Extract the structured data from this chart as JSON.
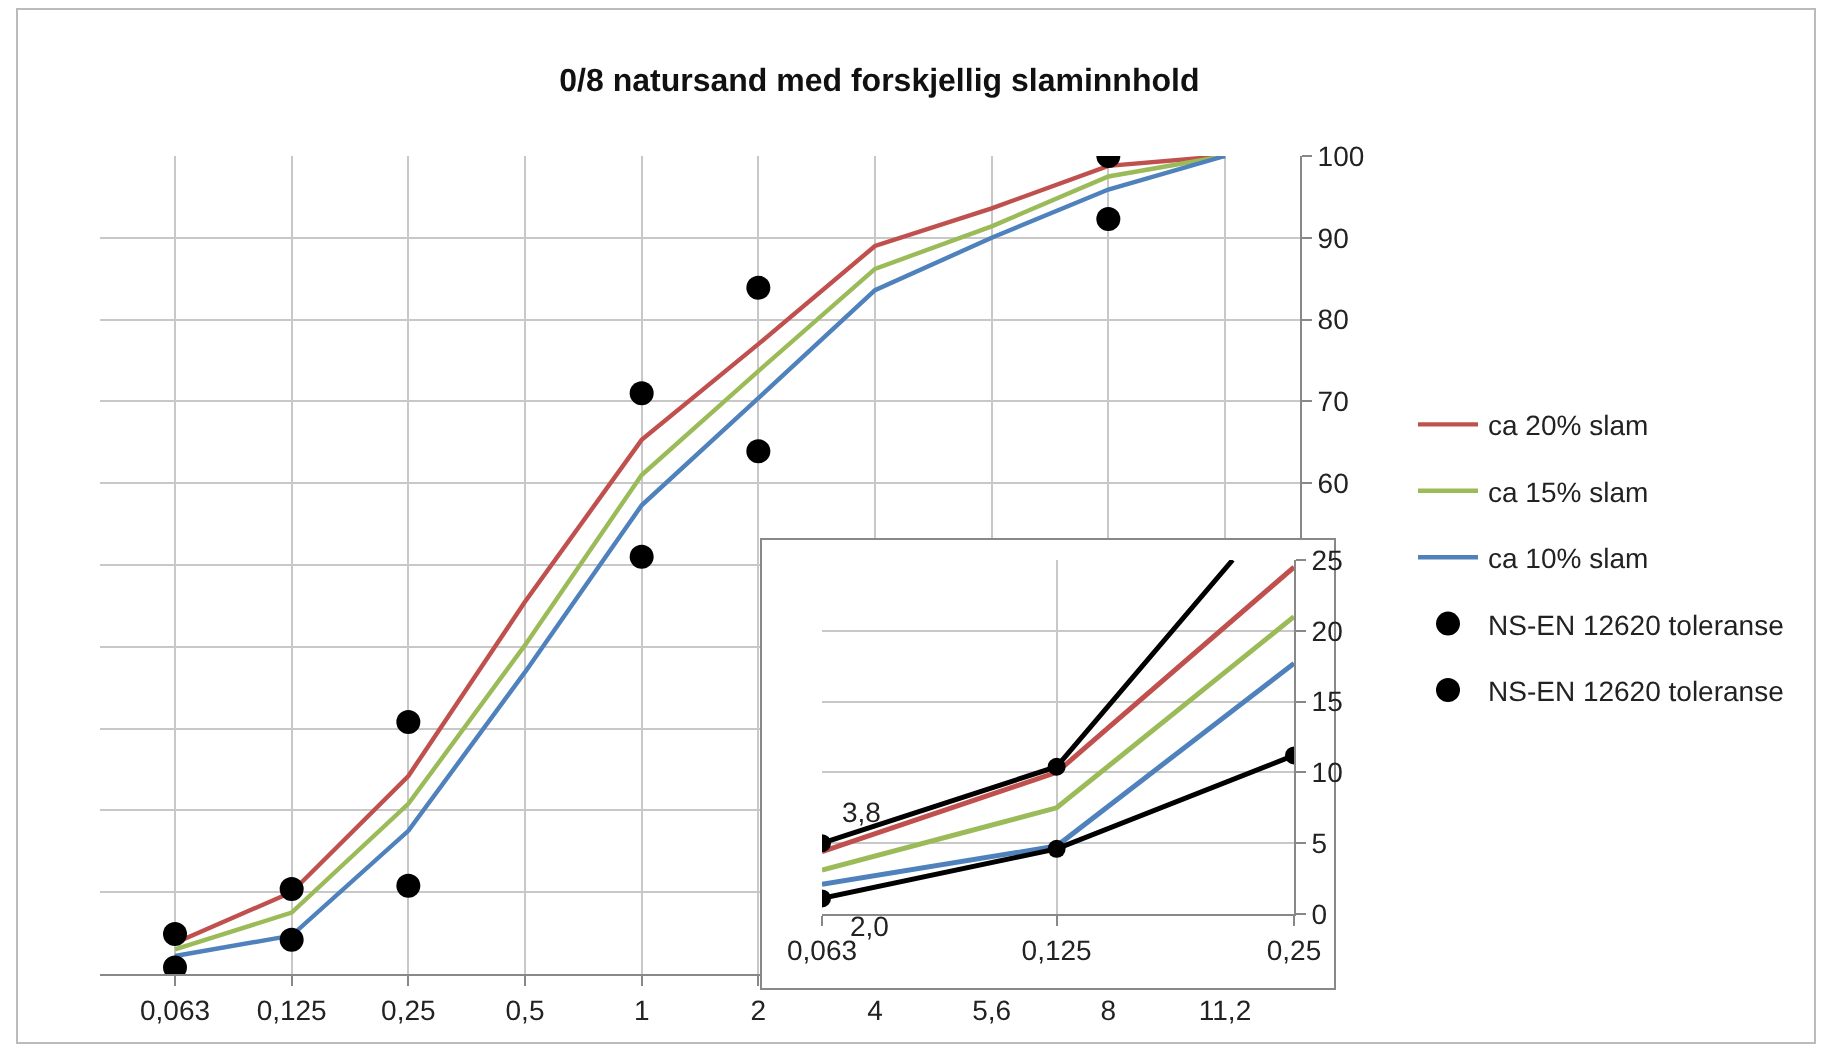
{
  "chart_data": [
    {
      "type": "line",
      "title": "0/8 natursand med forskjellig slaminnhold",
      "categories": [
        "0,063",
        "0,125",
        "0,25",
        "0,5",
        "1",
        "2",
        "4",
        "5,6",
        "8",
        "11,2"
      ],
      "ylim": [
        0,
        100
      ],
      "yticks": [
        {
          "value": 0,
          "label": null
        },
        {
          "value": 10,
          "label": null
        },
        {
          "value": 20,
          "label": null
        },
        {
          "value": 30,
          "label": null
        },
        {
          "value": 40,
          "label": null
        },
        {
          "value": 50,
          "label": null
        },
        60,
        70,
        80,
        90,
        100
      ],
      "grid": true,
      "legend": "right",
      "marker": "none",
      "series": [
        {
          "name": "ca 20% slam",
          "color": "#c0504d",
          "values": [
            3.8,
            10.0,
            24.2,
            45.5,
            65.3,
            77,
            89,
            93.6,
            98.8,
            100
          ]
        },
        {
          "name": "ca 15% slam",
          "color": "#9bbb59",
          "values": [
            3.0,
            7.5,
            20.8,
            40.2,
            61.0,
            73.7,
            86.2,
            91.4,
            97.5,
            100
          ]
        },
        {
          "name": "ca 10% slam",
          "color": "#4f81bd",
          "values": [
            2.2,
            4.7,
            17.5,
            36.9,
            57.3,
            70.4,
            83.6,
            90.0,
            95.9,
            100
          ]
        },
        {
          "name": "NS-EN 12620 toleranse",
          "type": "scatter",
          "marker": "circle",
          "color": "#000000",
          "values": [
            4.9,
            10.4,
            30.8,
            null,
            71,
            83.9,
            null,
            null,
            100,
            null
          ]
        },
        {
          "name": "NS-EN 12620 toleranse",
          "type": "scatter",
          "marker": "circle",
          "color": "#000000",
          "values": [
            0.8,
            4.2,
            10.8,
            null,
            51,
            63.9,
            null,
            null,
            92.3,
            null
          ]
        }
      ]
    },
    {
      "type": "line",
      "x": [
        0.063,
        0.125,
        0.25
      ],
      "log": "x",
      "xlim": [
        0.063,
        0.25
      ],
      "xticks": [
        {
          "value": 0.063,
          "label": "0,063"
        },
        {
          "value": 0.125,
          "label": "0,125"
        },
        {
          "value": 0.25,
          "label": "0,25"
        }
      ],
      "ylim": [
        0,
        25
      ],
      "yticks": [
        0,
        5,
        10,
        15,
        20,
        25
      ],
      "grid": true,
      "legend": false,
      "marker": "none",
      "annotations": [
        {
          "text": "3,8",
          "x": 0.063,
          "y": 3.8
        },
        {
          "text": "2,0",
          "x": 0.063,
          "y": 2.0
        }
      ],
      "series": [
        {
          "color": "#c0504d",
          "values": [
            4.4,
            10,
            24.5
          ]
        },
        {
          "color": "#9bbb59",
          "values": [
            3.1,
            7.5,
            21
          ]
        },
        {
          "color": "#4f81bd",
          "values": [
            2.1,
            4.8,
            17.7
          ]
        },
        {
          "color": "#000000",
          "x": [
            0.063,
            0.125,
            0.209
          ],
          "values": [
            5.0,
            10.4,
            25
          ]
        },
        {
          "color": "#000000",
          "type": "scatter",
          "marker": "circle",
          "x": [
            0.063,
            0.125
          ],
          "values": [
            5.0,
            10.4
          ]
        },
        {
          "color": "#000000",
          "marker": "circle",
          "values": [
            1.1,
            4.6,
            11.2
          ]
        }
      ]
    }
  ]
}
